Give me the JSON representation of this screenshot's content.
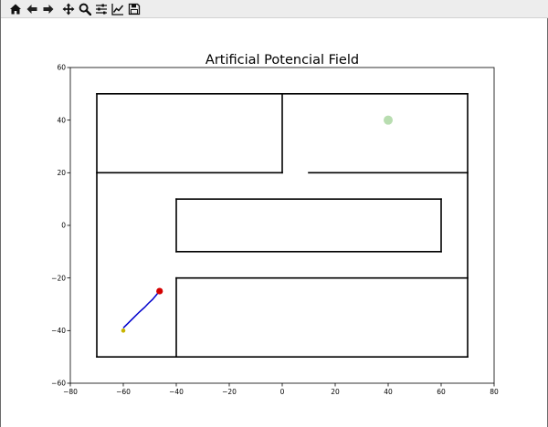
{
  "toolbar": {
    "icons": [
      "home-icon",
      "back-icon",
      "forward-icon",
      "pan-icon",
      "zoom-icon",
      "configure-subplots-icon",
      "edit-axis-icon",
      "save-icon"
    ]
  },
  "chart_data": {
    "type": "scatter",
    "title": "Artificial Potencial Field",
    "xlabel": "",
    "ylabel": "",
    "xlim": [
      -80,
      80
    ],
    "ylim": [
      -60,
      60
    ],
    "x_ticks": [
      -80,
      -60,
      -40,
      -20,
      0,
      20,
      40,
      60,
      80
    ],
    "y_ticks": [
      -60,
      -40,
      -20,
      0,
      20,
      40,
      60
    ],
    "x_tick_labels": [
      "−80",
      "−60",
      "−40",
      "−20",
      "0",
      "20",
      "40",
      "60",
      "80"
    ],
    "y_tick_labels": [
      "−60",
      "−40",
      "−20",
      "0",
      "20",
      "40",
      "60"
    ],
    "grid": false,
    "walls": [
      [
        [
          -70,
          50
        ],
        [
          70,
          50
        ]
      ],
      [
        [
          -70,
          50
        ],
        [
          -70,
          -50
        ]
      ],
      [
        [
          -70,
          -50
        ],
        [
          70,
          -50
        ]
      ],
      [
        [
          70,
          50
        ],
        [
          70,
          -50
        ]
      ],
      [
        [
          0,
          50
        ],
        [
          0,
          20
        ]
      ],
      [
        [
          -70,
          20
        ],
        [
          0,
          20
        ]
      ],
      [
        [
          10,
          20
        ],
        [
          70,
          20
        ]
      ],
      [
        [
          -40,
          10
        ],
        [
          60,
          10
        ]
      ],
      [
        [
          -40,
          -10
        ],
        [
          60,
          -10
        ]
      ],
      [
        [
          -40,
          10
        ],
        [
          -40,
          -10
        ]
      ],
      [
        [
          60,
          10
        ],
        [
          60,
          -10
        ]
      ],
      [
        [
          -40,
          -20
        ],
        [
          70,
          -20
        ]
      ],
      [
        [
          -40,
          -20
        ],
        [
          -40,
          -50
        ]
      ]
    ],
    "path": [
      [
        -60,
        -39
      ],
      [
        -58,
        -37
      ],
      [
        -56,
        -35
      ],
      [
        -54,
        -33
      ],
      [
        -52,
        -31.2
      ],
      [
        -50.5,
        -29.6
      ],
      [
        -49,
        -28.2
      ],
      [
        -47.8,
        -26.8
      ],
      [
        -47,
        -25.8
      ],
      [
        -46.5,
        -25.2
      ]
    ],
    "start": [
      -60,
      -40
    ],
    "robot": [
      -46.3,
      -25
    ],
    "goal": [
      40,
      40
    ],
    "colors": {
      "wall": "#000000",
      "path": "#0000cc",
      "start": "#c8b400",
      "robot": "#d40000",
      "goal": "#b8ddb0"
    }
  }
}
